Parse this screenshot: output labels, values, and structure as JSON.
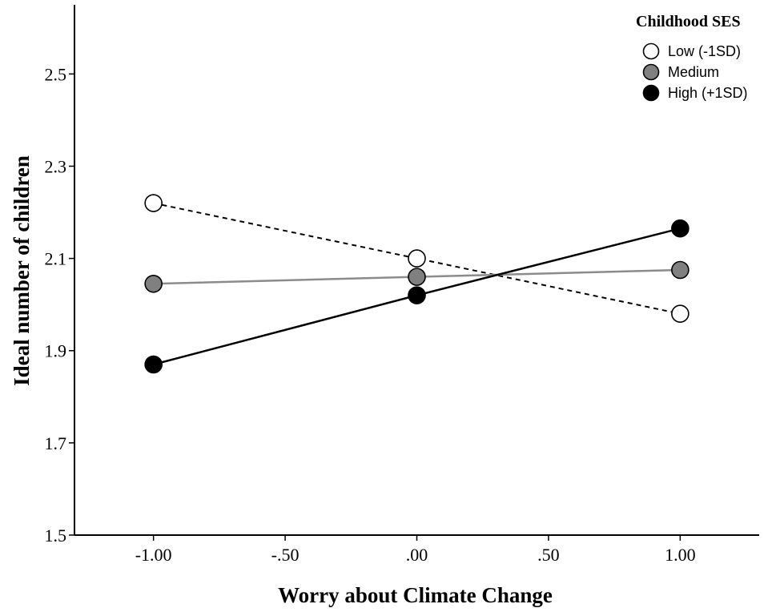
{
  "chart_data": {
    "type": "line",
    "xlabel": "Worry about Climate Change",
    "ylabel": "Ideal number of children",
    "xlim": [
      -1.3,
      1.3
    ],
    "ylim": [
      1.5,
      2.65
    ],
    "x_ticks": [
      -1.0,
      -0.5,
      0.0,
      0.5,
      1.0
    ],
    "x_tick_labels": [
      "-1.00",
      "-.50",
      ".00",
      ".50",
      "1.00"
    ],
    "y_ticks": [
      1.5,
      1.7,
      1.9,
      2.1,
      2.3,
      2.5
    ],
    "y_tick_labels": [
      "1.5",
      "1.7",
      "1.9",
      "2.1",
      "2.3",
      "2.5"
    ],
    "grid": false,
    "legend": {
      "title": "Childhood SES",
      "position": "top-right"
    },
    "series": [
      {
        "name": "Low (-1SD)",
        "x": [
          -1.0,
          0.0,
          1.0
        ],
        "values": [
          2.22,
          2.1,
          1.98
        ],
        "marker_fill": "#ffffff",
        "line_color": "#000000",
        "line_style": "dashed"
      },
      {
        "name": "Medium",
        "x": [
          -1.0,
          0.0,
          1.0
        ],
        "values": [
          2.045,
          2.06,
          2.075
        ],
        "marker_fill": "#808080",
        "line_color": "#8c8c8c",
        "line_style": "solid"
      },
      {
        "name": "High (+1SD)",
        "x": [
          -1.0,
          0.0,
          1.0
        ],
        "values": [
          1.87,
          2.02,
          2.165
        ],
        "marker_fill": "#000000",
        "line_color": "#000000",
        "line_style": "solid"
      }
    ]
  }
}
